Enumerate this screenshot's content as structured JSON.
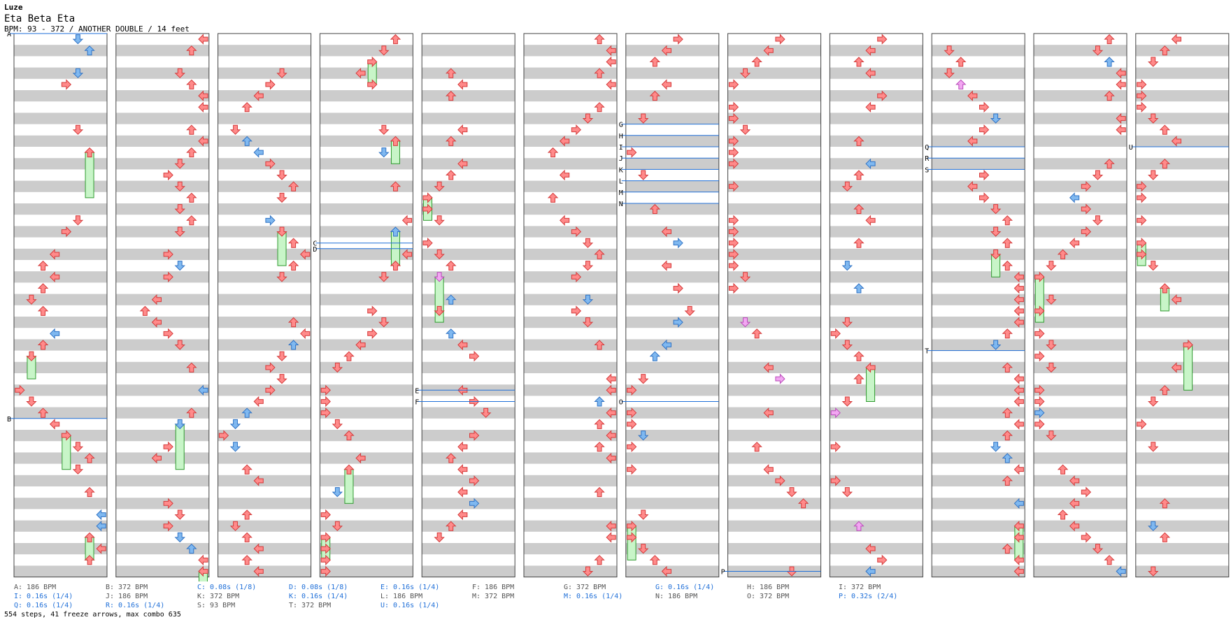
{
  "header": {
    "artist": "Luze",
    "title": "Eta Beta Eta",
    "meta": "BPM: 93 - 372 / ANOTHER DOUBLE / 14 feet"
  },
  "colors": {
    "stripe": "#cccccc",
    "border": "#444444",
    "arrow_red": "#ff8a8a",
    "arrow_red_stroke": "#d43a3a",
    "arrow_blue": "#7fb8f0",
    "arrow_blue_stroke": "#2f72c4",
    "arrow_pink": "#f2a6f2",
    "arrow_pink_stroke": "#b84ab8",
    "arrow_green": "#4ec24e",
    "freeze_fill": "#c8f5c8",
    "freeze_stroke": "#2f9a2f",
    "marker_line": "#1f6fd8",
    "legend_blue": "#1f6fd8"
  },
  "markers": [
    {
      "label": "A",
      "col": 0,
      "row": 0
    },
    {
      "label": "B",
      "col": 0,
      "row": 34
    },
    {
      "label": "C",
      "col": 3,
      "row": 18.5
    },
    {
      "label": "D",
      "col": 3,
      "row": 19
    },
    {
      "label": "E",
      "col": 4,
      "row": 31.5
    },
    {
      "label": "F",
      "col": 4,
      "row": 32.5
    },
    {
      "label": "G",
      "col": 6,
      "row": 8
    },
    {
      "label": "H",
      "col": 6,
      "row": 9
    },
    {
      "label": "I",
      "col": 6,
      "row": 10
    },
    {
      "label": "J",
      "col": 6,
      "row": 11
    },
    {
      "label": "K",
      "col": 6,
      "row": 12
    },
    {
      "label": "L",
      "col": 6,
      "row": 13
    },
    {
      "label": "M",
      "col": 6,
      "row": 14
    },
    {
      "label": "N",
      "col": 6,
      "row": 15
    },
    {
      "label": "O",
      "col": 6,
      "row": 32.5
    },
    {
      "label": "P",
      "col": 7,
      "row": 47.5
    },
    {
      "label": "Q",
      "col": 9,
      "row": 10
    },
    {
      "label": "R",
      "col": 9,
      "row": 11
    },
    {
      "label": "S",
      "col": 9,
      "row": 12
    },
    {
      "label": "T",
      "col": 9,
      "row": 28
    },
    {
      "label": "U",
      "col": 11,
      "row": 10
    }
  ],
  "legend": [
    {
      "text": "A: 186 BPM",
      "style": "gray"
    },
    {
      "text": "B: 372 BPM",
      "style": "gray"
    },
    {
      "text": "C: 0.08s (1/8)",
      "style": "blue"
    },
    {
      "text": "D: 0.08s (1/8)",
      "style": "blue"
    },
    {
      "text": "E: 0.16s (1/4)",
      "style": "blue"
    },
    {
      "text": "F: 186 BPM",
      "style": "gray"
    },
    {
      "text": "G: 372 BPM",
      "style": "gray"
    },
    {
      "text": "G: 0.16s (1/4)",
      "style": "blue"
    },
    {
      "text": "H: 186 BPM",
      "style": "gray"
    },
    {
      "text": "I: 372 BPM",
      "style": "gray"
    },
    {
      "text": "I: 0.16s (1/4)",
      "style": "blue"
    },
    {
      "text": "J: 186 BPM",
      "style": "gray"
    },
    {
      "text": "K: 372 BPM",
      "style": "gray"
    },
    {
      "text": "K: 0.16s (1/4)",
      "style": "blue"
    },
    {
      "text": "L: 186 BPM",
      "style": "gray"
    },
    {
      "text": "M: 372 BPM",
      "style": "gray"
    },
    {
      "text": "M: 0.16s (1/4)",
      "style": "blue"
    },
    {
      "text": "N: 186 BPM",
      "style": "gray"
    },
    {
      "text": "O: 372 BPM",
      "style": "gray"
    },
    {
      "text": "P: 0.32s (2/4)",
      "style": "blue"
    },
    {
      "text": "Q: 0.16s (1/4)",
      "style": "blue"
    },
    {
      "text": "R: 0.16s (1/4)",
      "style": "blue"
    },
    {
      "text": "S: 93 BPM",
      "style": "gray"
    },
    {
      "text": "T: 372 BPM",
      "style": "gray"
    },
    {
      "text": "U: 0.16s (1/4)",
      "style": "blue"
    }
  ],
  "stats": "554 steps, 41 freeze arrows, max combo 635"
}
